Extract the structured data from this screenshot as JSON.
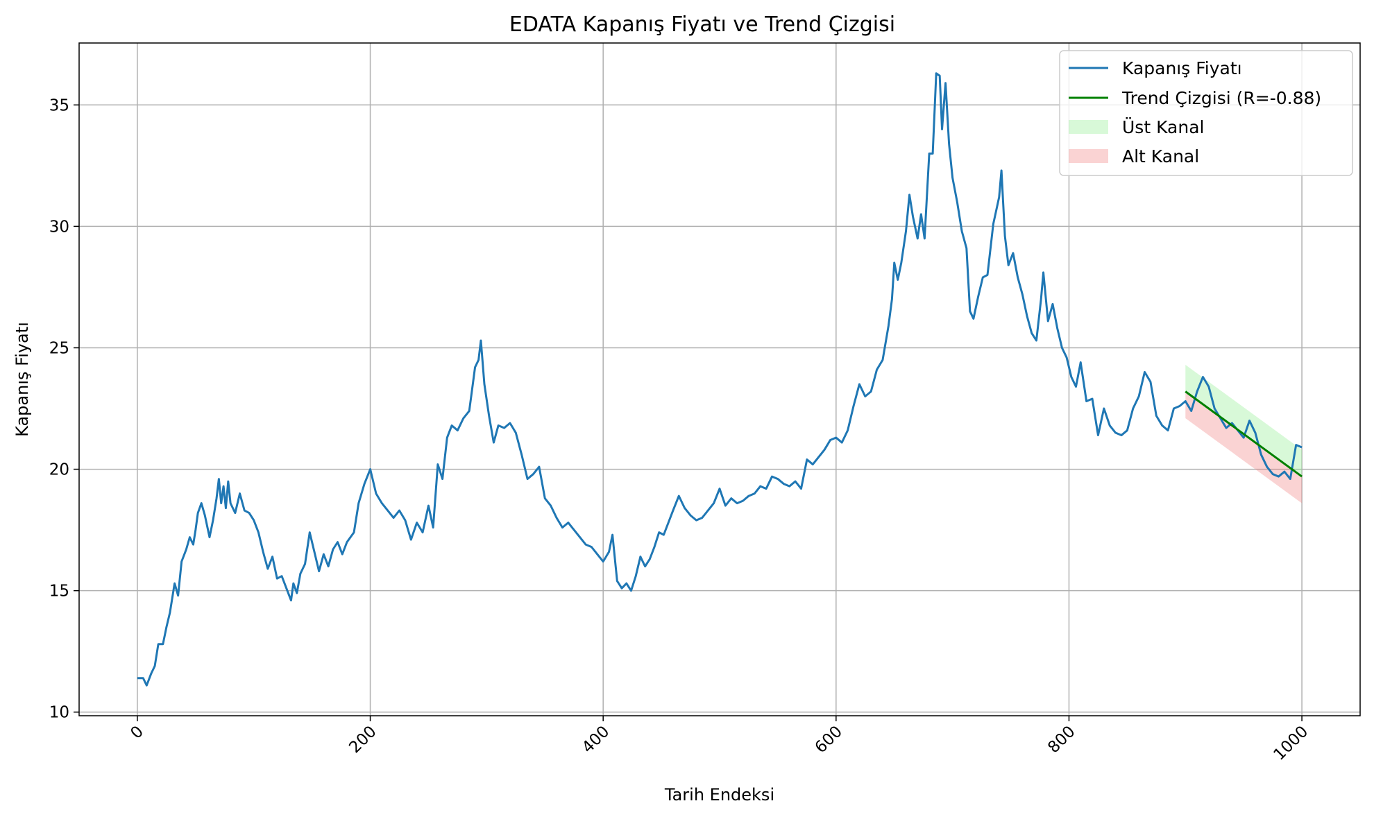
{
  "chart_data": {
    "type": "line",
    "title": "EDATA Kapanış Fiyatı ve Trend Çizgisi",
    "xlabel": "Tarih Endeksi",
    "ylabel": "Kapanış Fiyatı",
    "xlim": [
      -50,
      1050
    ],
    "ylim": [
      9.85,
      37.55
    ],
    "xticks": [
      0,
      200,
      400,
      600,
      800,
      1000
    ],
    "yticks": [
      10,
      15,
      20,
      25,
      30,
      35
    ],
    "grid": true,
    "legend_position": "top-right",
    "colors": {
      "price": "#1f77b4",
      "trend": "#008000",
      "upper_channel": "#90ee90",
      "lower_channel": "#f08080"
    },
    "series": [
      {
        "name": "Kapanış Fiyatı",
        "kind": "line",
        "points": [
          [
            0,
            11.4
          ],
          [
            5,
            11.4
          ],
          [
            8,
            11.1
          ],
          [
            12,
            11.6
          ],
          [
            15,
            11.9
          ],
          [
            18,
            12.8
          ],
          [
            22,
            12.8
          ],
          [
            25,
            13.5
          ],
          [
            28,
            14.1
          ],
          [
            32,
            15.3
          ],
          [
            35,
            14.8
          ],
          [
            38,
            16.2
          ],
          [
            42,
            16.7
          ],
          [
            45,
            17.2
          ],
          [
            48,
            16.9
          ],
          [
            50,
            17.5
          ],
          [
            52,
            18.2
          ],
          [
            55,
            18.6
          ],
          [
            58,
            18.1
          ],
          [
            62,
            17.2
          ],
          [
            65,
            17.9
          ],
          [
            68,
            18.8
          ],
          [
            70,
            19.6
          ],
          [
            72,
            18.6
          ],
          [
            74,
            19.3
          ],
          [
            76,
            18.4
          ],
          [
            78,
            19.5
          ],
          [
            80,
            18.6
          ],
          [
            84,
            18.2
          ],
          [
            88,
            19.0
          ],
          [
            92,
            18.3
          ],
          [
            96,
            18.2
          ],
          [
            100,
            17.9
          ],
          [
            104,
            17.4
          ],
          [
            108,
            16.6
          ],
          [
            112,
            15.9
          ],
          [
            116,
            16.4
          ],
          [
            120,
            15.5
          ],
          [
            124,
            15.6
          ],
          [
            128,
            15.1
          ],
          [
            132,
            14.6
          ],
          [
            134,
            15.3
          ],
          [
            137,
            14.9
          ],
          [
            140,
            15.7
          ],
          [
            144,
            16.1
          ],
          [
            148,
            17.4
          ],
          [
            152,
            16.6
          ],
          [
            156,
            15.8
          ],
          [
            160,
            16.5
          ],
          [
            164,
            16.0
          ],
          [
            168,
            16.7
          ],
          [
            172,
            17.0
          ],
          [
            176,
            16.5
          ],
          [
            180,
            17.0
          ],
          [
            186,
            17.4
          ],
          [
            190,
            18.6
          ],
          [
            195,
            19.4
          ],
          [
            200,
            20.0
          ],
          [
            205,
            19.0
          ],
          [
            210,
            18.6
          ],
          [
            215,
            18.3
          ],
          [
            220,
            18.0
          ],
          [
            225,
            18.3
          ],
          [
            230,
            17.9
          ],
          [
            235,
            17.1
          ],
          [
            240,
            17.8
          ],
          [
            245,
            17.4
          ],
          [
            250,
            18.5
          ],
          [
            254,
            17.6
          ],
          [
            258,
            20.2
          ],
          [
            262,
            19.6
          ],
          [
            266,
            21.3
          ],
          [
            270,
            21.8
          ],
          [
            275,
            21.6
          ],
          [
            280,
            22.1
          ],
          [
            285,
            22.4
          ],
          [
            290,
            24.2
          ],
          [
            293,
            24.5
          ],
          [
            295,
            25.3
          ],
          [
            298,
            23.5
          ],
          [
            302,
            22.2
          ],
          [
            306,
            21.1
          ],
          [
            310,
            21.8
          ],
          [
            315,
            21.7
          ],
          [
            320,
            21.9
          ],
          [
            325,
            21.5
          ],
          [
            330,
            20.6
          ],
          [
            335,
            19.6
          ],
          [
            340,
            19.8
          ],
          [
            345,
            20.1
          ],
          [
            350,
            18.8
          ],
          [
            355,
            18.5
          ],
          [
            360,
            18.0
          ],
          [
            365,
            17.6
          ],
          [
            370,
            17.8
          ],
          [
            375,
            17.5
          ],
          [
            380,
            17.2
          ],
          [
            385,
            16.9
          ],
          [
            390,
            16.8
          ],
          [
            395,
            16.5
          ],
          [
            400,
            16.2
          ],
          [
            405,
            16.6
          ],
          [
            408,
            17.3
          ],
          [
            412,
            15.4
          ],
          [
            416,
            15.1
          ],
          [
            420,
            15.3
          ],
          [
            424,
            15.0
          ],
          [
            428,
            15.6
          ],
          [
            432,
            16.4
          ],
          [
            436,
            16.0
          ],
          [
            440,
            16.3
          ],
          [
            444,
            16.8
          ],
          [
            448,
            17.4
          ],
          [
            452,
            17.3
          ],
          [
            456,
            17.8
          ],
          [
            460,
            18.3
          ],
          [
            465,
            18.9
          ],
          [
            470,
            18.4
          ],
          [
            475,
            18.1
          ],
          [
            480,
            17.9
          ],
          [
            485,
            18.0
          ],
          [
            490,
            18.3
          ],
          [
            495,
            18.6
          ],
          [
            500,
            19.2
          ],
          [
            505,
            18.5
          ],
          [
            510,
            18.8
          ],
          [
            515,
            18.6
          ],
          [
            520,
            18.7
          ],
          [
            525,
            18.9
          ],
          [
            530,
            19.0
          ],
          [
            535,
            19.3
          ],
          [
            540,
            19.2
          ],
          [
            545,
            19.7
          ],
          [
            550,
            19.6
          ],
          [
            555,
            19.4
          ],
          [
            560,
            19.3
          ],
          [
            565,
            19.5
          ],
          [
            570,
            19.2
          ],
          [
            575,
            20.4
          ],
          [
            580,
            20.2
          ],
          [
            585,
            20.5
          ],
          [
            590,
            20.8
          ],
          [
            595,
            21.2
          ],
          [
            600,
            21.3
          ],
          [
            605,
            21.1
          ],
          [
            610,
            21.6
          ],
          [
            615,
            22.6
          ],
          [
            620,
            23.5
          ],
          [
            625,
            23.0
          ],
          [
            630,
            23.2
          ],
          [
            635,
            24.1
          ],
          [
            640,
            24.5
          ],
          [
            645,
            25.9
          ],
          [
            648,
            27.0
          ],
          [
            650,
            28.5
          ],
          [
            653,
            27.8
          ],
          [
            656,
            28.5
          ],
          [
            660,
            29.8
          ],
          [
            663,
            31.3
          ],
          [
            666,
            30.4
          ],
          [
            670,
            29.5
          ],
          [
            673,
            30.5
          ],
          [
            676,
            29.5
          ],
          [
            680,
            33.0
          ],
          [
            683,
            33.0
          ],
          [
            686,
            36.3
          ],
          [
            689,
            36.2
          ],
          [
            691,
            34.0
          ],
          [
            694,
            35.9
          ],
          [
            697,
            33.4
          ],
          [
            700,
            32.0
          ],
          [
            704,
            31.0
          ],
          [
            708,
            29.8
          ],
          [
            712,
            29.1
          ],
          [
            715,
            26.5
          ],
          [
            718,
            26.2
          ],
          [
            722,
            27.1
          ],
          [
            726,
            27.9
          ],
          [
            730,
            28.0
          ],
          [
            735,
            30.1
          ],
          [
            740,
            31.2
          ],
          [
            742,
            32.3
          ],
          [
            745,
            29.6
          ],
          [
            748,
            28.4
          ],
          [
            752,
            28.9
          ],
          [
            756,
            27.9
          ],
          [
            760,
            27.2
          ],
          [
            764,
            26.3
          ],
          [
            768,
            25.6
          ],
          [
            772,
            25.3
          ],
          [
            776,
            27.0
          ],
          [
            778,
            28.1
          ],
          [
            782,
            26.1
          ],
          [
            786,
            26.8
          ],
          [
            790,
            25.8
          ],
          [
            794,
            25.0
          ],
          [
            798,
            24.6
          ],
          [
            802,
            23.8
          ],
          [
            806,
            23.4
          ],
          [
            810,
            24.4
          ],
          [
            815,
            22.8
          ],
          [
            820,
            22.9
          ],
          [
            825,
            21.4
          ],
          [
            830,
            22.5
          ],
          [
            835,
            21.8
          ],
          [
            840,
            21.5
          ],
          [
            845,
            21.4
          ],
          [
            850,
            21.6
          ],
          [
            855,
            22.5
          ],
          [
            860,
            23.0
          ],
          [
            865,
            24.0
          ],
          [
            870,
            23.6
          ],
          [
            875,
            22.2
          ],
          [
            880,
            21.8
          ],
          [
            885,
            21.6
          ],
          [
            890,
            22.5
          ],
          [
            895,
            22.6
          ],
          [
            900,
            22.8
          ],
          [
            905,
            22.4
          ],
          [
            910,
            23.2
          ],
          [
            915,
            23.8
          ],
          [
            920,
            23.4
          ],
          [
            925,
            22.5
          ],
          [
            930,
            22.1
          ],
          [
            935,
            21.7
          ],
          [
            940,
            21.9
          ],
          [
            945,
            21.6
          ],
          [
            950,
            21.3
          ],
          [
            955,
            22.0
          ],
          [
            960,
            21.5
          ],
          [
            965,
            20.6
          ],
          [
            970,
            20.1
          ],
          [
            975,
            19.8
          ],
          [
            980,
            19.7
          ],
          [
            985,
            19.9
          ],
          [
            990,
            19.6
          ],
          [
            995,
            21.0
          ],
          [
            1000,
            20.9
          ]
        ]
      },
      {
        "name": "Trend Çizgisi (R=-0.88)",
        "kind": "line",
        "points": [
          [
            900,
            23.2
          ],
          [
            1000,
            19.7
          ]
        ]
      },
      {
        "name": "Üst Kanal",
        "kind": "band",
        "points": [
          [
            900,
            23.2,
            24.3
          ],
          [
            1000,
            19.7,
            20.8
          ]
        ]
      },
      {
        "name": "Alt Kanal",
        "kind": "band",
        "points": [
          [
            900,
            22.1,
            23.2
          ],
          [
            1000,
            18.6,
            19.7
          ]
        ]
      }
    ]
  }
}
